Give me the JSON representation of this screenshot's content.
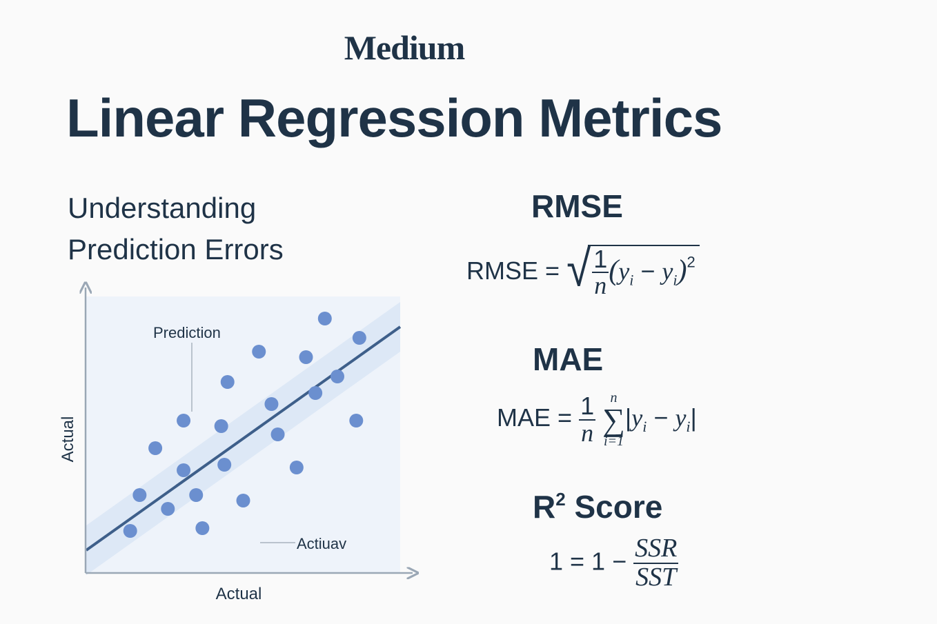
{
  "brand": "Medium",
  "title": "Linear Regression Metrics",
  "subtitle": {
    "line1": "Understanding",
    "line2": "Prediction Errors"
  },
  "metrics": {
    "rmse": {
      "heading": "RMSE",
      "lhs": "RMSE =",
      "frac_num": "1",
      "frac_den": "n",
      "var": "y",
      "sub": "i",
      "op": "−",
      "exp": "2"
    },
    "mae": {
      "heading": "MAE",
      "lhs": "MAE =",
      "frac_num": "1",
      "frac_den": "n",
      "sum_top": "n",
      "sum_bottom": "i=1",
      "var": "y",
      "sub": "i",
      "op": "−"
    },
    "r2": {
      "heading_main": "R",
      "heading_sup": "2",
      "heading_rest": "Score",
      "lhs": "1 = 1 −",
      "frac_num": "SSR",
      "frac_den": "SST"
    }
  },
  "chart_data": {
    "type": "scatter",
    "xlabel": "Actual",
    "ylabel": "Actual",
    "annotations": {
      "prediction": "Prediction",
      "actual": "Actiuav"
    },
    "xlim": [
      0,
      10
    ],
    "ylim": [
      0,
      10
    ],
    "line": {
      "x": [
        0,
        10
      ],
      "y": [
        0.8,
        8.9
      ]
    },
    "band_half_width": 0.9,
    "points": [
      {
        "x": 1.4,
        "y": 1.5
      },
      {
        "x": 1.7,
        "y": 2.8
      },
      {
        "x": 2.2,
        "y": 4.5
      },
      {
        "x": 2.6,
        "y": 2.3
      },
      {
        "x": 3.1,
        "y": 3.7
      },
      {
        "x": 3.1,
        "y": 5.5
      },
      {
        "x": 3.5,
        "y": 2.8
      },
      {
        "x": 3.7,
        "y": 1.6
      },
      {
        "x": 4.3,
        "y": 5.3
      },
      {
        "x": 4.5,
        "y": 6.9
      },
      {
        "x": 4.4,
        "y": 3.9
      },
      {
        "x": 5.0,
        "y": 2.6
      },
      {
        "x": 5.5,
        "y": 8.0
      },
      {
        "x": 5.9,
        "y": 6.1
      },
      {
        "x": 6.1,
        "y": 5.0
      },
      {
        "x": 6.7,
        "y": 3.8
      },
      {
        "x": 7.0,
        "y": 7.8
      },
      {
        "x": 7.3,
        "y": 6.5
      },
      {
        "x": 8.0,
        "y": 7.1
      },
      {
        "x": 7.6,
        "y": 9.2
      },
      {
        "x": 8.6,
        "y": 5.5
      },
      {
        "x": 8.7,
        "y": 8.5
      }
    ],
    "colors": {
      "point": "#6b8fcf",
      "line": "#3e5f8a",
      "band": "#dbe7f6",
      "plot_bg": "#eef3fa",
      "axis": "#9aa7b5"
    },
    "grid": false
  }
}
